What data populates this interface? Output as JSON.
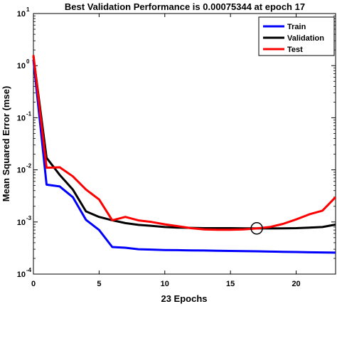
{
  "chart_data": {
    "type": "line",
    "title": "Best Validation Performance is 0.00075344 at epoch 17",
    "xlabel": "23 Epochs",
    "ylabel": "Mean Squared Error  (mse)",
    "xlim": [
      0,
      23
    ],
    "ylim": [
      0.0001,
      10
    ],
    "yscale": "log",
    "x_ticks": [
      0,
      5,
      10,
      15,
      20
    ],
    "y_ticks": [
      {
        "value": 0.0001,
        "base": "10",
        "exp": "-4"
      },
      {
        "value": 0.001,
        "base": "10",
        "exp": "-3"
      },
      {
        "value": 0.01,
        "base": "10",
        "exp": "-2"
      },
      {
        "value": 0.1,
        "base": "10",
        "exp": "-1"
      },
      {
        "value": 1,
        "base": "10",
        "exp": "0"
      },
      {
        "value": 10,
        "base": "10",
        "exp": "1"
      }
    ],
    "legend_position": "top-right",
    "series": [
      {
        "name": "Train",
        "color": "#0000ff",
        "x": [
          0,
          1,
          2,
          3,
          4,
          5,
          6,
          7,
          8,
          9,
          10,
          11,
          12,
          13,
          14,
          15,
          16,
          17,
          18,
          19,
          20,
          21,
          22,
          23
        ],
        "values": [
          1.3,
          0.0052,
          0.0048,
          0.003,
          0.0011,
          0.0007,
          0.00033,
          0.00032,
          0.0003,
          0.000295,
          0.00029,
          0.000288,
          0.000285,
          0.000283,
          0.00028,
          0.000278,
          0.000276,
          0.000274,
          0.00027,
          0.000268,
          0.000265,
          0.000262,
          0.00026,
          0.000258
        ]
      },
      {
        "name": "Validation",
        "color": "#000000",
        "x": [
          0,
          1,
          2,
          3,
          4,
          5,
          6,
          7,
          8,
          9,
          10,
          11,
          12,
          13,
          14,
          15,
          16,
          17,
          18,
          19,
          20,
          21,
          22,
          23
        ],
        "values": [
          1.5,
          0.017,
          0.008,
          0.0042,
          0.0016,
          0.00125,
          0.00108,
          0.00095,
          0.00088,
          0.00084,
          0.0008,
          0.00078,
          0.00077,
          0.00076,
          0.00076,
          0.00076,
          0.000755,
          0.00075344,
          0.00075,
          0.000755,
          0.00076,
          0.00078,
          0.0008,
          0.00089
        ]
      },
      {
        "name": "Test",
        "color": "#ff0000",
        "x": [
          0,
          1,
          2,
          3,
          4,
          5,
          6,
          7,
          8,
          9,
          10,
          11,
          12,
          13,
          14,
          15,
          16,
          17,
          18,
          19,
          20,
          21,
          22,
          23
        ],
        "values": [
          1.6,
          0.011,
          0.0112,
          0.0075,
          0.0042,
          0.0027,
          0.00108,
          0.00125,
          0.00107,
          0.001,
          0.0009,
          0.00083,
          0.00076,
          0.00072,
          0.00071,
          0.00071,
          0.00072,
          0.00075,
          0.0008,
          0.00092,
          0.00112,
          0.0014,
          0.00165,
          0.003
        ]
      }
    ],
    "best_point": {
      "x": 17,
      "y": 0.00075344
    }
  }
}
